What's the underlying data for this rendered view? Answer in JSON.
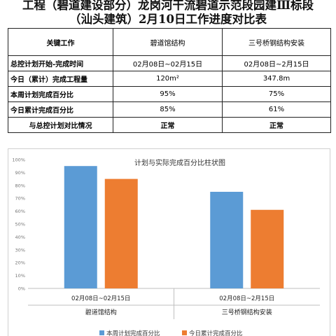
{
  "title": {
    "line1": "工程（碧道建设部分）龙岗河干流碧道示范段园建Ⅲ标段",
    "line2": "（汕头建筑）2月10日工作进度对比表"
  },
  "table": {
    "header": {
      "label": "关键工作",
      "col1": "碧道馆结构",
      "col2": "三号桥钢结构安装"
    },
    "rows": [
      {
        "label": "总控计划开始-完成时间",
        "col1": "02月08日~02月15日",
        "col2": "02月08日~2月15日",
        "bold": false
      },
      {
        "label": "今日（累计）完成工程量",
        "col1": "120m²",
        "col2": "347.8m",
        "bold": false
      },
      {
        "label": "本周计划完成百分比",
        "col1": "95%",
        "col2": "75%",
        "bold": false
      },
      {
        "label": "今日累计完成百分比",
        "col1": "85%",
        "col2": "61%",
        "bold": false
      },
      {
        "label": "与总控计划对比情况",
        "col1": "正常",
        "col2": "正常",
        "bold": true
      }
    ]
  },
  "chart_data": {
    "type": "bar",
    "title": "计划与实际完成百分比柱状图",
    "categories": [
      {
        "date": "02月08日~02月15日",
        "name": "碧道馆结构"
      },
      {
        "date": "02月08日~2月15日",
        "name": "三号桥钢结构安装"
      }
    ],
    "series": [
      {
        "name": "本周计划完成百分比",
        "values": [
          95,
          75
        ],
        "color": "#5b9bd5"
      },
      {
        "name": "今日累计完成百分比",
        "values": [
          85,
          61
        ],
        "color": "#ed7d31"
      }
    ],
    "ylim": [
      0,
      100
    ],
    "yticks": [
      "0%",
      "10%",
      "20%",
      "30%",
      "40%",
      "50%",
      "60%",
      "70%",
      "80%",
      "90%",
      "100%"
    ],
    "grid": false,
    "legend": "bottom"
  }
}
